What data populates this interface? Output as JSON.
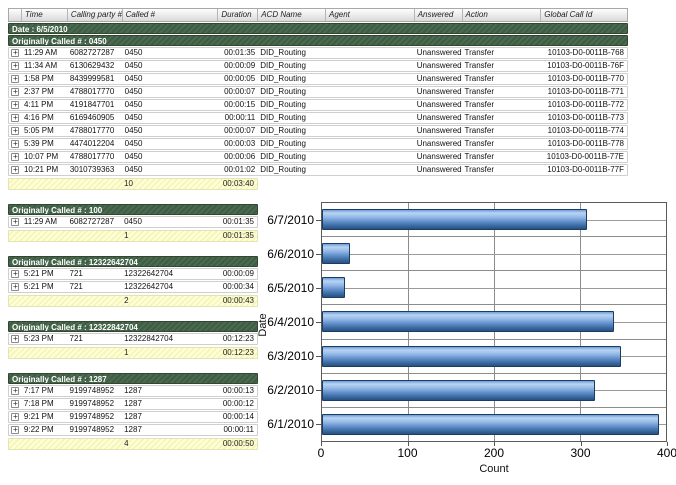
{
  "icons": {
    "expand": "+"
  },
  "colors": {
    "group_header_green": "#44614a",
    "summary_yellow": "#f8f8c0",
    "bar_blue": "#5e8dc9",
    "header_gray": "#d9d9d9"
  },
  "table": {
    "columns": [
      "",
      "Time",
      "Calling party #",
      "Called #",
      "Duration",
      "ACD Name",
      "Agent",
      "Answered",
      "Action",
      "Global Call Id"
    ],
    "date_header": "Date : 6/5/2010",
    "groups": [
      {
        "header": "Originally Called # : 0450",
        "wide": true,
        "rows": [
          [
            "11:29 AM",
            "6082727287",
            "0450",
            "00:01:35",
            "DID_Routing",
            "",
            "Unanswered",
            "Transfer",
            "10103-D0-0011B-768"
          ],
          [
            "11:34 AM",
            "6130629432",
            "0450",
            "00:00:09",
            "DID_Routing",
            "",
            "Unanswered",
            "Transfer",
            "10103-D0-0011B-76F"
          ],
          [
            "1:58 PM",
            "8439999581",
            "0450",
            "00:00:05",
            "DID_Routing",
            "",
            "Unanswered",
            "Transfer",
            "10103-D0-0011B-770"
          ],
          [
            "2:37 PM",
            "4788017770",
            "0450",
            "00:00:07",
            "DID_Routing",
            "",
            "Unanswered",
            "Transfer",
            "10103-D0-0011B-771"
          ],
          [
            "4:11 PM",
            "4191847701",
            "0450",
            "00:00:15",
            "DID_Routing",
            "",
            "Unanswered",
            "Transfer",
            "10103-D0-0011B-772"
          ],
          [
            "4:16 PM",
            "6169460905",
            "0450",
            "00:00:11",
            "DID_Routing",
            "",
            "Unanswered",
            "Transfer",
            "10103-D0-0011B-773"
          ],
          [
            "5:05 PM",
            "4788017770",
            "0450",
            "00:00:07",
            "DID_Routing",
            "",
            "Unanswered",
            "Transfer",
            "10103-D0-0011B-774"
          ],
          [
            "5:39 PM",
            "4474012204",
            "0450",
            "00:00:03",
            "DID_Routing",
            "",
            "Unanswered",
            "Transfer",
            "10103-D0-0011B-778"
          ],
          [
            "10:07 PM",
            "4788017770",
            "0450",
            "00:00:06",
            "DID_Routing",
            "",
            "Unanswered",
            "Transfer",
            "10103-D0-0011B-77E"
          ],
          [
            "10:21 PM",
            "3010739363",
            "0450",
            "00:01:02",
            "DID_Routing",
            "",
            "Unanswered",
            "Transfer",
            "10103-D0-0011B-77F"
          ]
        ],
        "summary": {
          "count": "10",
          "total_duration": "00:03:40"
        }
      },
      {
        "header": "Originally Called # : 100",
        "wide": false,
        "rows": [
          [
            "11:29 AM",
            "6082727287",
            "0450",
            "00:01:35"
          ]
        ],
        "summary": {
          "count": "1",
          "total_duration": "00:01:35"
        }
      },
      {
        "header": "Originally Called # : 12322642704",
        "wide": false,
        "rows": [
          [
            "5:21 PM",
            "721",
            "12322642704",
            "00:00:09"
          ],
          [
            "5:21 PM",
            "721",
            "12322642704",
            "00:00:34"
          ]
        ],
        "summary": {
          "count": "2",
          "total_duration": "00:00:43"
        }
      },
      {
        "header": "Originally Called # : 12322842704",
        "wide": false,
        "rows": [
          [
            "5:23 PM",
            "721",
            "12322842704",
            "00:12:23"
          ]
        ],
        "summary": {
          "count": "1",
          "total_duration": "00:12:23"
        }
      },
      {
        "header": "Originally Called # : 1287",
        "wide": false,
        "rows": [
          [
            "7:17 PM",
            "9199748952",
            "1287",
            "00:00:13"
          ],
          [
            "7:18 PM",
            "9199748952",
            "1287",
            "00:00:12"
          ],
          [
            "9:21 PM",
            "9199748952",
            "1287",
            "00:00:14"
          ],
          [
            "9:22 PM",
            "9199748952",
            "1287",
            "00:00:11"
          ]
        ],
        "summary": {
          "count": "4",
          "total_duration": "00:00:50"
        }
      }
    ]
  },
  "chart_data": {
    "type": "bar",
    "orientation": "horizontal",
    "categories": [
      "6/7/2010",
      "6/6/2010",
      "6/5/2010",
      "6/4/2010",
      "6/3/2010",
      "6/2/2010",
      "6/1/2010"
    ],
    "values": [
      308,
      33,
      27,
      340,
      348,
      318,
      392
    ],
    "title": "",
    "xlabel": "Count",
    "ylabel": "Date",
    "xlim": [
      0,
      400
    ],
    "xticks": [
      0,
      100,
      200,
      300,
      400
    ],
    "grid": true,
    "legend": "none"
  }
}
